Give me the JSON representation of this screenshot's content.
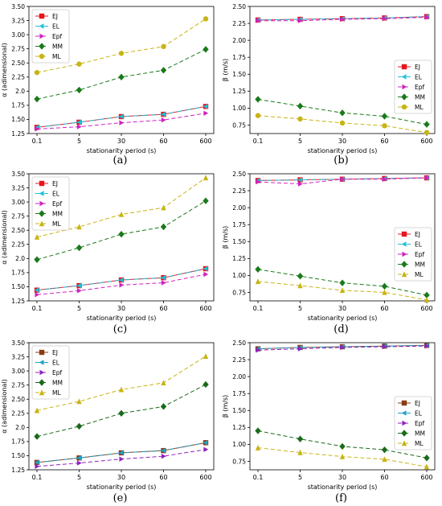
{
  "chart_data": [
    {
      "type": "line",
      "panel_label": "(a)",
      "xlabel": "stationarity period (s)",
      "ylabel": "α (adimensional)",
      "categories": [
        "0.1",
        "5",
        "30",
        "60",
        "600"
      ],
      "ylim": [
        1.25,
        3.5
      ],
      "yticks": [
        "1.25",
        "1.50",
        "1.75",
        "2.0",
        "2.25",
        "2.50",
        "2.75",
        "3.00",
        "3.25",
        "3.50"
      ],
      "legend_position": "top-left",
      "grid": false,
      "series": [
        {
          "name": "EJ",
          "marker": "square",
          "dash": "solid",
          "color": "#e8141e",
          "values": [
            1.36,
            1.45,
            1.55,
            1.59,
            1.73
          ]
        },
        {
          "name": "EL",
          "marker": "tri-left",
          "dash": "dashdot",
          "color": "#1ec0d8",
          "values": [
            1.36,
            1.45,
            1.55,
            1.59,
            1.73
          ]
        },
        {
          "name": "Epf",
          "marker": "tri-right",
          "dash": "dashed",
          "color": "#d020c0",
          "values": [
            1.33,
            1.37,
            1.44,
            1.49,
            1.61
          ]
        },
        {
          "name": "MM",
          "marker": "diamond",
          "dash": "dashed",
          "color": "#1a7a1a",
          "values": [
            1.86,
            2.02,
            2.25,
            2.37,
            2.74
          ]
        },
        {
          "name": "ML",
          "marker": "circle",
          "dash": "dashed",
          "color": "#c8b414",
          "values": [
            2.33,
            2.48,
            2.67,
            2.79,
            3.28
          ]
        }
      ]
    },
    {
      "type": "line",
      "panel_label": "(b)",
      "xlabel": "stationarity period (s)",
      "ylabel": "β (m/s)",
      "categories": [
        "0.1",
        "5",
        "30",
        "60",
        "600"
      ],
      "ylim": [
        0.625,
        2.5
      ],
      "yticks": [
        "0.75",
        "1.00",
        "1.25",
        "1.50",
        "1.75",
        "2.00",
        "2.25",
        "2.50"
      ],
      "legend_position": "center-right",
      "grid": false,
      "series": [
        {
          "name": "EJ",
          "marker": "square",
          "dash": "solid",
          "color": "#e8141e",
          "values": [
            2.3,
            2.31,
            2.32,
            2.33,
            2.35
          ]
        },
        {
          "name": "EL",
          "marker": "tri-left",
          "dash": "dashdot",
          "color": "#1ec0d8",
          "values": [
            2.3,
            2.31,
            2.32,
            2.33,
            2.35
          ]
        },
        {
          "name": "Epf",
          "marker": "tri-right",
          "dash": "dashed",
          "color": "#d020c0",
          "values": [
            2.29,
            2.29,
            2.31,
            2.32,
            2.34
          ]
        },
        {
          "name": "MM",
          "marker": "diamond",
          "dash": "dashed",
          "color": "#1a7a1a",
          "values": [
            1.13,
            1.03,
            0.93,
            0.88,
            0.76
          ]
        },
        {
          "name": "ML",
          "marker": "circle",
          "dash": "dashed",
          "color": "#c8b414",
          "values": [
            0.89,
            0.84,
            0.78,
            0.74,
            0.64
          ]
        }
      ]
    },
    {
      "type": "line",
      "panel_label": "(c)",
      "xlabel": "stationarity period (s)",
      "ylabel": "α (adimensional)",
      "categories": [
        "0.1",
        "5",
        "30",
        "60",
        "600"
      ],
      "ylim": [
        1.25,
        3.5
      ],
      "yticks": [
        "1.25",
        "1.50",
        "1.75",
        "2.0",
        "2.25",
        "2.50",
        "2.75",
        "3.00",
        "3.25",
        "3.50"
      ],
      "legend_position": "top-left",
      "grid": false,
      "series": [
        {
          "name": "EJ",
          "marker": "square",
          "dash": "solid",
          "color": "#e8141e",
          "values": [
            1.44,
            1.52,
            1.62,
            1.66,
            1.82
          ]
        },
        {
          "name": "EL",
          "marker": "tri-left",
          "dash": "dashdot",
          "color": "#1ec0d8",
          "values": [
            1.44,
            1.52,
            1.62,
            1.66,
            1.82
          ]
        },
        {
          "name": "Epf",
          "marker": "tri-right",
          "dash": "dashed",
          "color": "#d020c0",
          "values": [
            1.36,
            1.43,
            1.53,
            1.57,
            1.72
          ]
        },
        {
          "name": "MM",
          "marker": "diamond",
          "dash": "dashed",
          "color": "#1a7a1a",
          "values": [
            1.98,
            2.19,
            2.43,
            2.56,
            3.02
          ]
        },
        {
          "name": "ML",
          "marker": "tri-up",
          "dash": "dashed",
          "color": "#c8b414",
          "values": [
            2.38,
            2.56,
            2.78,
            2.9,
            3.43
          ]
        }
      ]
    },
    {
      "type": "line",
      "panel_label": "(d)",
      "xlabel": "stationarity period (s)",
      "ylabel": "β (m/s)",
      "categories": [
        "0.1",
        "5",
        "30",
        "60",
        "600"
      ],
      "ylim": [
        0.625,
        2.5
      ],
      "yticks": [
        "0.75",
        "1.00",
        "1.25",
        "1.50",
        "1.75",
        "2.00",
        "2.25",
        "2.50"
      ],
      "legend_position": "center-right",
      "grid": false,
      "series": [
        {
          "name": "EJ",
          "marker": "square",
          "dash": "solid",
          "color": "#e8141e",
          "values": [
            2.4,
            2.41,
            2.42,
            2.43,
            2.44
          ]
        },
        {
          "name": "EL",
          "marker": "tri-left",
          "dash": "dashdot",
          "color": "#1ec0d8",
          "values": [
            2.4,
            2.41,
            2.42,
            2.43,
            2.44
          ]
        },
        {
          "name": "Epf",
          "marker": "tri-right",
          "dash": "dashed",
          "color": "#d020c0",
          "values": [
            2.38,
            2.35,
            2.42,
            2.42,
            2.44
          ]
        },
        {
          "name": "MM",
          "marker": "diamond",
          "dash": "dashed",
          "color": "#1a7a1a",
          "values": [
            1.09,
            0.99,
            0.89,
            0.84,
            0.71
          ]
        },
        {
          "name": "ML",
          "marker": "tri-up",
          "dash": "dashed",
          "color": "#c8b414",
          "values": [
            0.91,
            0.85,
            0.78,
            0.75,
            0.64
          ]
        }
      ]
    },
    {
      "type": "line",
      "panel_label": "(e)",
      "xlabel": "stationarity period (s)",
      "ylabel": "α (adimensional)",
      "categories": [
        "0.1",
        "5",
        "30",
        "60",
        "600"
      ],
      "ylim": [
        1.25,
        3.5
      ],
      "yticks": [
        "1.25",
        "1.50",
        "1.75",
        "2.0",
        "2.25",
        "2.50",
        "2.75",
        "3.00",
        "3.25",
        "3.50"
      ],
      "legend_position": "top-left",
      "grid": false,
      "series": [
        {
          "name": "EJ",
          "marker": "square",
          "dash": "solid",
          "color": "#8a3c14",
          "values": [
            1.38,
            1.46,
            1.55,
            1.59,
            1.73
          ]
        },
        {
          "name": "EL",
          "marker": "tri-left",
          "dash": "dashdot",
          "color": "#1ea0c8",
          "values": [
            1.38,
            1.46,
            1.55,
            1.59,
            1.73
          ]
        },
        {
          "name": "Epf",
          "marker": "tri-right",
          "dash": "dashed",
          "color": "#9020c0",
          "values": [
            1.31,
            1.37,
            1.44,
            1.49,
            1.61
          ]
        },
        {
          "name": "MM",
          "marker": "diamond",
          "dash": "dashed",
          "color": "#1a6a1a",
          "values": [
            1.84,
            2.02,
            2.25,
            2.37,
            2.76
          ]
        },
        {
          "name": "ML",
          "marker": "tri-up",
          "dash": "dashed",
          "color": "#c8b414",
          "values": [
            2.3,
            2.46,
            2.67,
            2.79,
            3.26
          ]
        }
      ]
    },
    {
      "type": "line",
      "panel_label": "(f)",
      "xlabel": "stationarity period (s)",
      "ylabel": "β (m/s)",
      "categories": [
        "0.1",
        "5",
        "30",
        "60",
        "600"
      ],
      "ylim": [
        0.625,
        2.5
      ],
      "yticks": [
        "0.75",
        "1.00",
        "1.25",
        "1.50",
        "1.75",
        "2.00",
        "2.25",
        "2.50"
      ],
      "legend_position": "center-right",
      "grid": false,
      "series": [
        {
          "name": "EJ",
          "marker": "square",
          "dash": "solid",
          "color": "#8a3c14",
          "values": [
            2.41,
            2.43,
            2.44,
            2.45,
            2.46
          ]
        },
        {
          "name": "EL",
          "marker": "tri-left",
          "dash": "dashdot",
          "color": "#1ea0c8",
          "values": [
            2.41,
            2.43,
            2.44,
            2.45,
            2.46
          ]
        },
        {
          "name": "Epf",
          "marker": "tri-right",
          "dash": "dashed",
          "color": "#9020c0",
          "values": [
            2.39,
            2.41,
            2.43,
            2.44,
            2.45
          ]
        },
        {
          "name": "MM",
          "marker": "diamond",
          "dash": "dashed",
          "color": "#1a6a1a",
          "values": [
            1.2,
            1.08,
            0.97,
            0.92,
            0.8
          ]
        },
        {
          "name": "ML",
          "marker": "tri-up",
          "dash": "dashed",
          "color": "#c8b414",
          "values": [
            0.95,
            0.88,
            0.82,
            0.78,
            0.67
          ]
        }
      ]
    }
  ]
}
